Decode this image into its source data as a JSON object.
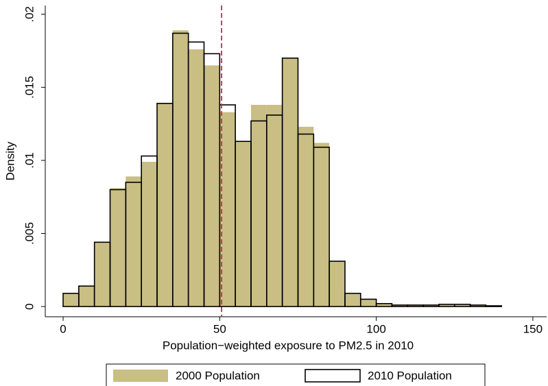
{
  "chart_data": {
    "type": "histogram",
    "x_label": "Population−weighted exposure to PM2.5 in 2010",
    "y_label": "Density",
    "bins": [
      0,
      5,
      10,
      15,
      20,
      25,
      30,
      35,
      40,
      45,
      50,
      55,
      60,
      65,
      70,
      75,
      80,
      85,
      90,
      95,
      100,
      105,
      110,
      115,
      120,
      125,
      130,
      135,
      140
    ],
    "series": [
      {
        "name": "2000 Population",
        "color": "#c9be84",
        "style": "fill",
        "values": [
          0.0009,
          0.0014,
          0.0044,
          0.0081,
          0.0089,
          0.0099,
          0.0139,
          0.0189,
          0.0176,
          0.0165,
          0.0133,
          0.0113,
          0.0138,
          0.0138,
          0.017,
          0.0123,
          0.0112,
          0.0031,
          0.0009,
          0.0005,
          0.0002,
          0.0001,
          0.0001,
          0.0001,
          0.00015,
          0.00015,
          0.0001,
          5e-05
        ]
      },
      {
        "name": "2010 Population",
        "color": "#000000",
        "style": "outline",
        "values": [
          0.0009,
          0.0014,
          0.0044,
          0.008,
          0.0085,
          0.0103,
          0.0139,
          0.0187,
          0.0181,
          0.0173,
          0.0138,
          0.0113,
          0.0127,
          0.0131,
          0.017,
          0.0118,
          0.0109,
          0.0031,
          0.0009,
          0.0005,
          0.0002,
          0.0001,
          0.0001,
          0.0001,
          0.00015,
          0.00015,
          0.0001,
          5e-05
        ]
      }
    ],
    "reference_line": 50.6,
    "reference_line_color": "#d6204f",
    "xlim": [
      -5.7,
      154.4
    ],
    "ylim": [
      -0.0007,
      0.0206
    ],
    "xticks": [
      0,
      50,
      100,
      150
    ],
    "yticks": [
      0,
      {
        "value": 0.005,
        "label": ".005"
      },
      {
        "value": 0.01,
        "label": ".01"
      },
      {
        "value": 0.015,
        "label": ".015"
      },
      {
        "value": 0.02,
        "label": ".02"
      }
    ],
    "legend": "bottom"
  }
}
